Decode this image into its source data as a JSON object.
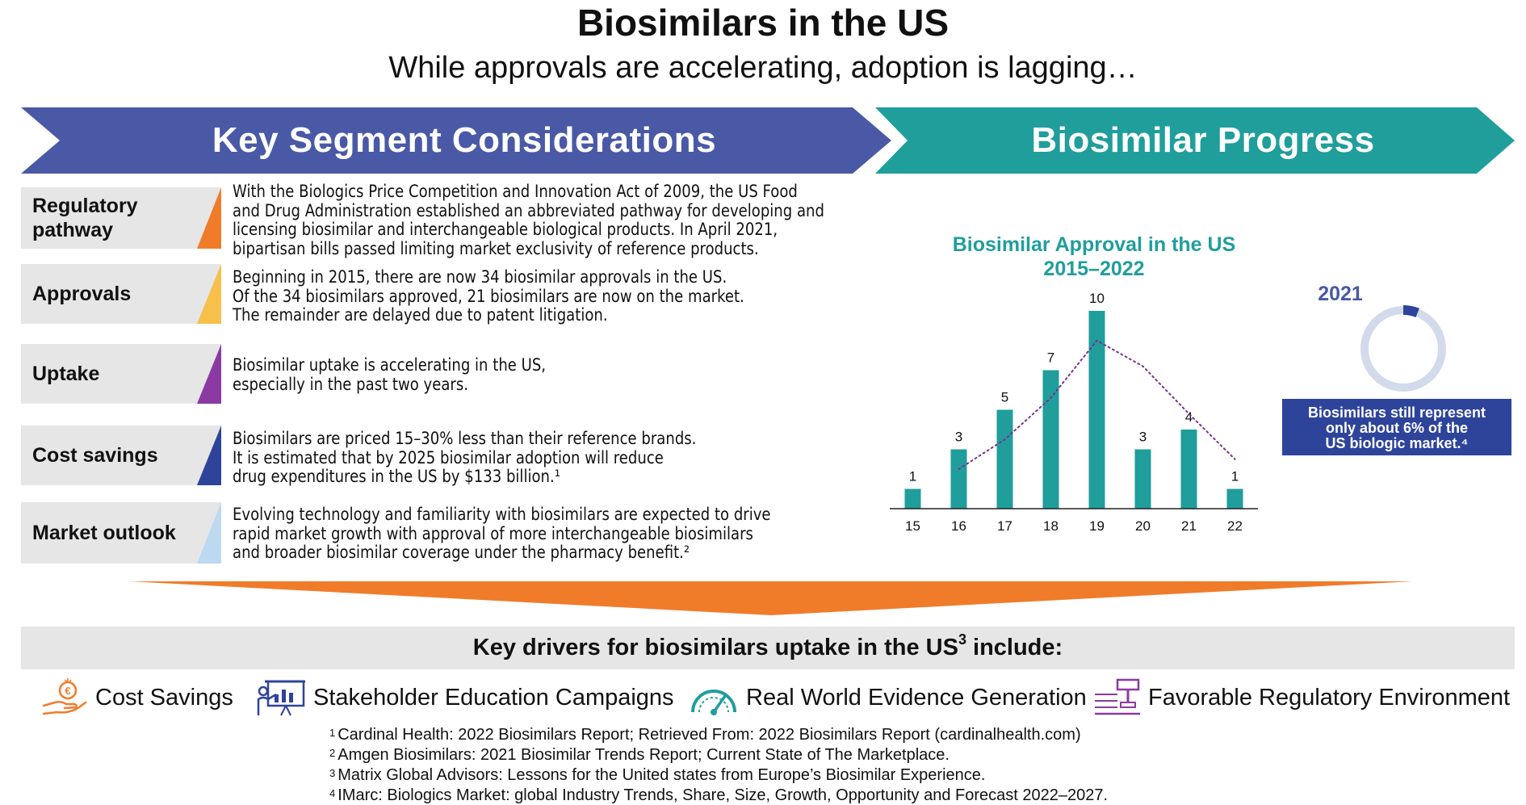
{
  "header": {
    "title": "Biosimilars in the US",
    "subtitle": "While approvals are accelerating, adoption is lagging…"
  },
  "banners": {
    "left": "Key Segment Considerations",
    "right": "Biosimilar Progress"
  },
  "segments": [
    {
      "label": "Regulatory pathway",
      "color": "#f07c2a",
      "lines": [
        "With the Biologics Price Competition and Innovation Act of 2009, the US Food",
        "and Drug Administration established an abbreviated pathway for developing and",
        "licensing biosimilar and interchangeable biological products. In April 2021,",
        "bipartisan bills passed limiting market exclusivity of reference products."
      ]
    },
    {
      "label": "Approvals",
      "color": "#f6c04a",
      "lines": [
        "Beginning in 2015, there are now 34 biosimilar approvals in the US.",
        "Of the 34 biosimilars approved, 21 biosimilars are now on the market.",
        "The remainder are delayed due to patent litigation."
      ]
    },
    {
      "label": "Uptake",
      "color": "#8b3aa3",
      "lines": [
        "Biosimilar uptake is accelerating in the US,",
        "especially in the past two years."
      ]
    },
    {
      "label": "Cost savings",
      "color": "#2e449b",
      "lines": [
        "Biosimilars are priced 15–30% less than their reference brands.",
        "It is estimated that by 2025 biosimilar adoption will reduce",
        "drug expenditures in the US by $133 billion.¹"
      ]
    },
    {
      "label": "Market outlook",
      "color": "#bcd9f0",
      "lines": [
        "Evolving technology and familiarity with biosimilars are expected to drive",
        "rapid market growth with approval of more interchangeable biosimilars",
        "and broader biosimilar coverage under the pharmacy benefit.²"
      ]
    }
  ],
  "chart_data": {
    "type": "bar",
    "title": "Biosimilar Approval in the US",
    "subtitle": "2015–2022",
    "categories": [
      "15",
      "16",
      "17",
      "18",
      "19",
      "20",
      "21",
      "22"
    ],
    "values": [
      1,
      3,
      5,
      7,
      10,
      3,
      4,
      1
    ],
    "ylim": [
      0,
      10
    ],
    "trendline": [
      null,
      2.0,
      3.5,
      5.6,
      8.5,
      7.2,
      4.8,
      2.5
    ],
    "trendline_style": "dotted",
    "bar_color": "#1f9e9c",
    "trend_color": "#7b2f8e",
    "grid": false
  },
  "donut": {
    "label": "2021",
    "percent": 6,
    "note_lines": [
      "Biosimilars still represent",
      "only about 6% of the",
      "US biologic market.⁴"
    ],
    "ring_color": "#d3daeb",
    "accent_color": "#2e449b"
  },
  "drivers": {
    "heading": "Key drivers for biosimilars uptake in the US",
    "heading_sup": "3",
    "heading_suffix": " include:",
    "items": [
      {
        "label": "Cost Savings",
        "icon": "hand-coin-icon"
      },
      {
        "label": "Stakeholder Education Campaigns",
        "icon": "presentation-icon"
      },
      {
        "label": "Real World Evidence Generation",
        "icon": "gauge-icon"
      },
      {
        "label": "Favorable Regulatory Environment",
        "icon": "gavel-icon"
      }
    ]
  },
  "footnotes": [
    {
      "num": "1",
      "text": "Cardinal Health: 2022 Biosimilars Report; Retrieved From: 2022 Biosimilars Report (cardinalhealth.com)"
    },
    {
      "num": "2",
      "text": "Amgen Biosimilars: 2021 Biosimilar Trends Report; Current State of The Marketplace."
    },
    {
      "num": "3",
      "text": "Matrix Global Advisors: Lessons for the United states from Europe’s Biosimilar Experience."
    },
    {
      "num": "4",
      "text": "IMarc: Biologics Market: global Industry Trends, Share, Size, Growth, Opportunity and Forecast 2022–2027."
    }
  ]
}
